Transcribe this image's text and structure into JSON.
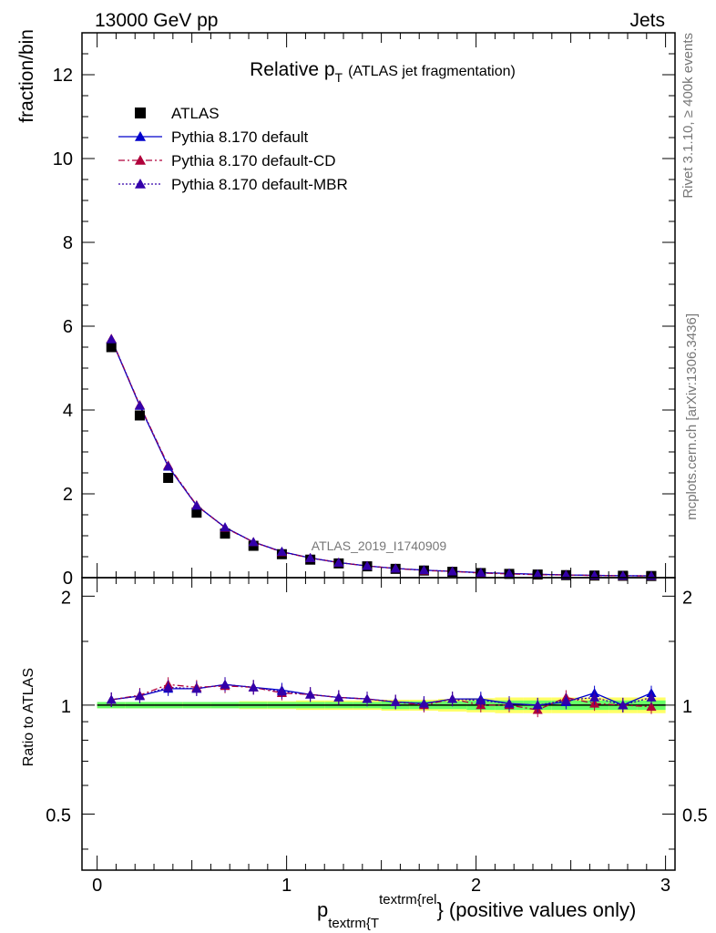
{
  "header": {
    "left": "13000 GeV pp",
    "right": "Jets"
  },
  "side_labels": {
    "rivet": "Rivet 3.1.10, ≥ 400k events",
    "mcplots": "mcplots.cern.ch [arXiv:1306.3436]"
  },
  "watermark": "ATLAS_2019_I1740909",
  "chart_data": [
    {
      "type": "scatter",
      "title": "Relative p",
      "title_sub": "T",
      "title_suffix": "(ATLAS jet fragmentation)",
      "ylabel": "fraction/bin",
      "xlim": [
        -0.08,
        3.05
      ],
      "ylim": [
        0,
        13
      ],
      "yticks": [
        0,
        2,
        4,
        6,
        8,
        10,
        12
      ],
      "tick_labels": [
        "0",
        "2",
        "4",
        "6",
        "8",
        "10",
        "12"
      ],
      "x": [
        0.075,
        0.225,
        0.375,
        0.525,
        0.675,
        0.825,
        0.975,
        1.125,
        1.275,
        1.425,
        1.575,
        1.725,
        1.875,
        2.025,
        2.175,
        2.325,
        2.475,
        2.625,
        2.775,
        2.925
      ],
      "legend": {
        "placement": "top-left",
        "entries": [
          "ATLAS",
          "Pythia 8.170 default",
          "Pythia 8.170 default-CD",
          "Pythia 8.170 default-MBR"
        ]
      },
      "series": [
        {
          "name": "ATLAS",
          "color": "#000000",
          "marker": "square",
          "values": [
            5.5,
            3.87,
            2.38,
            1.55,
            1.05,
            0.76,
            0.56,
            0.43,
            0.34,
            0.27,
            0.21,
            0.17,
            0.14,
            0.11,
            0.09,
            0.075,
            0.06,
            0.05,
            0.045,
            0.04
          ]
        },
        {
          "name": "Pythia 8.170 default",
          "color": "#0000cc",
          "marker": "triangle",
          "dash": "",
          "values": [
            5.69,
            4.1,
            2.65,
            1.72,
            1.2,
            0.85,
            0.62,
            0.47,
            0.36,
            0.28,
            0.22,
            0.18,
            0.15,
            0.12,
            0.1,
            0.08,
            0.065,
            0.055,
            0.047,
            0.043
          ]
        },
        {
          "name": "Pythia 8.170 default-CD",
          "color": "#b0003a",
          "marker": "triangle",
          "dash": "7,3,2,3",
          "values": [
            5.7,
            4.12,
            2.68,
            1.73,
            1.19,
            0.85,
            0.61,
            0.47,
            0.36,
            0.28,
            0.22,
            0.17,
            0.15,
            0.11,
            0.09,
            0.07,
            0.065,
            0.05,
            0.045,
            0.04
          ]
        },
        {
          "name": "Pythia 8.170 default-MBR",
          "color": "#3300aa",
          "marker": "triangle",
          "dash": "2,2",
          "values": [
            5.69,
            4.11,
            2.66,
            1.72,
            1.2,
            0.85,
            0.62,
            0.47,
            0.36,
            0.28,
            0.22,
            0.18,
            0.15,
            0.12,
            0.1,
            0.08,
            0.065,
            0.055,
            0.047,
            0.043
          ]
        }
      ]
    },
    {
      "type": "scatter",
      "ylabel": "Ratio to ATLAS",
      "xlabel_main": "p",
      "xlabel_sub": "textrm{T",
      "xlabel_sup": "textrm{rel",
      "xlabel_suffix": "} (positive values only)",
      "xlim": [
        -0.08,
        3.05
      ],
      "ylim": [
        0.35,
        2.25
      ],
      "yscale": "log",
      "yticks": [
        0.5,
        1,
        2
      ],
      "tick_labels": [
        "0.5",
        "1",
        "2"
      ],
      "xticks": [
        0,
        1,
        2,
        3
      ],
      "xtick_labels": [
        "0",
        "1",
        "2",
        "3"
      ],
      "x": [
        0.075,
        0.225,
        0.375,
        0.525,
        0.675,
        0.825,
        0.975,
        1.125,
        1.275,
        1.425,
        1.575,
        1.725,
        1.875,
        2.025,
        2.175,
        2.325,
        2.475,
        2.625,
        2.775,
        2.925
      ],
      "band_inner": [
        0.02,
        0.02,
        0.02,
        0.02,
        0.02,
        0.02,
        0.02,
        0.02,
        0.02,
        0.02,
        0.025,
        0.025,
        0.025,
        0.03,
        0.03,
        0.03,
        0.03,
        0.03,
        0.03,
        0.03
      ],
      "band_outer": [
        0.02,
        0.02,
        0.02,
        0.02,
        0.02,
        0.025,
        0.025,
        0.03,
        0.03,
        0.03,
        0.035,
        0.035,
        0.04,
        0.045,
        0.05,
        0.05,
        0.05,
        0.05,
        0.05,
        0.05
      ],
      "band_colors": {
        "inner": "#66ff66",
        "outer": "#ffff66"
      },
      "series": [
        {
          "name": "Pythia 8.170 default",
          "color": "#0000cc",
          "dash": "",
          "values": [
            1.035,
            1.06,
            1.11,
            1.11,
            1.14,
            1.12,
            1.1,
            1.07,
            1.05,
            1.04,
            1.02,
            1.01,
            1.04,
            1.04,
            1.01,
            1.0,
            1.02,
            1.08,
            1.0,
            1.08
          ]
        },
        {
          "name": "Pythia 8.170 default-CD",
          "color": "#b0003a",
          "dash": "7,3,2,3",
          "values": [
            1.035,
            1.065,
            1.14,
            1.12,
            1.13,
            1.12,
            1.08,
            1.07,
            1.05,
            1.04,
            1.02,
            1.0,
            1.04,
            1.0,
            1.0,
            0.97,
            1.05,
            1.01,
            1.0,
            0.99
          ]
        },
        {
          "name": "Pythia 8.170 default-MBR",
          "color": "#3300aa",
          "dash": "2,2",
          "values": [
            1.035,
            1.06,
            1.12,
            1.11,
            1.14,
            1.12,
            1.09,
            1.07,
            1.05,
            1.04,
            1.02,
            1.01,
            1.04,
            1.03,
            1.01,
            1.0,
            1.03,
            1.05,
            1.0,
            1.05
          ]
        }
      ]
    }
  ]
}
